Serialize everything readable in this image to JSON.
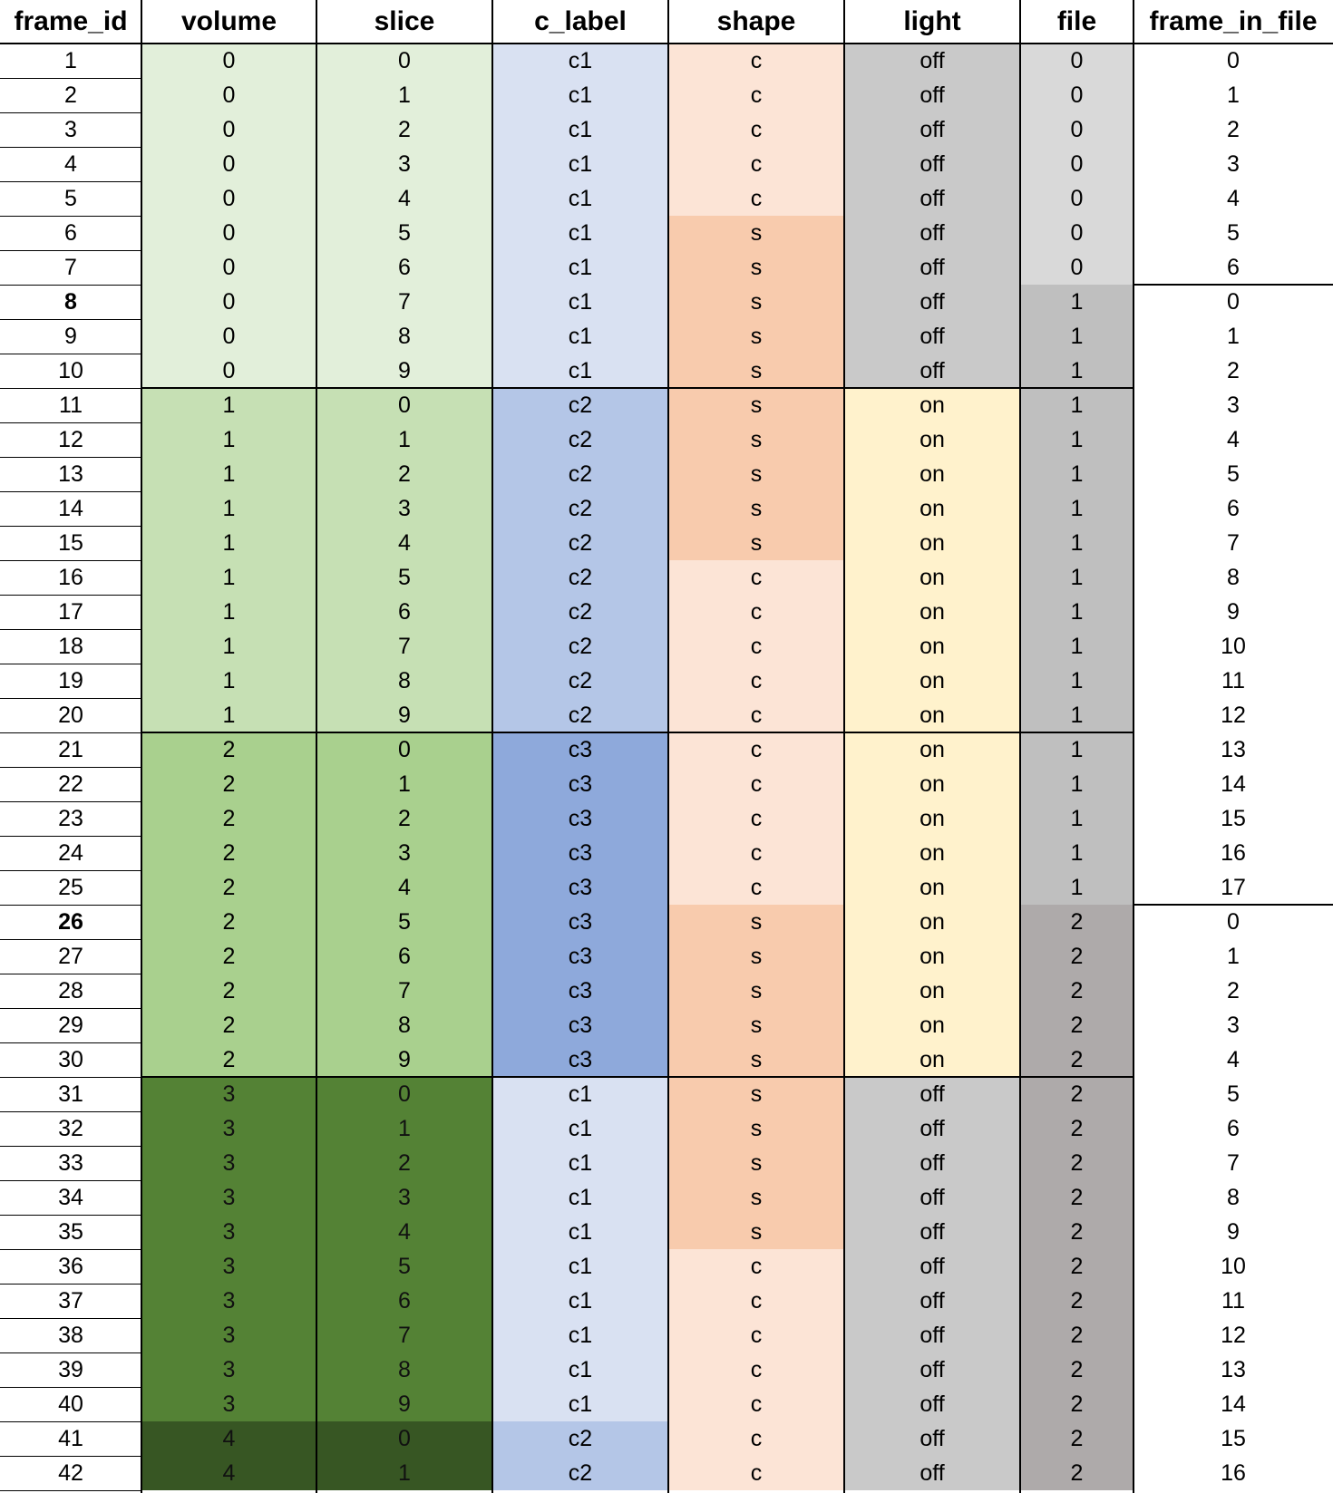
{
  "columns": [
    {
      "key": "frame_id",
      "label": "frame_id"
    },
    {
      "key": "volume",
      "label": "volume"
    },
    {
      "key": "slice",
      "label": "slice"
    },
    {
      "key": "c_label",
      "label": "c_label"
    },
    {
      "key": "shape",
      "label": "shape"
    },
    {
      "key": "light",
      "label": "light"
    },
    {
      "key": "file",
      "label": "file"
    },
    {
      "key": "frame_in_file",
      "label": "frame_in_file"
    }
  ],
  "bold_frame_ids": [
    8,
    26
  ],
  "colors": {
    "volume": [
      "#e2efda",
      "#c6e0b4",
      "#a9d08e",
      "#548235",
      "#375623"
    ],
    "c_label": {
      "c1": "#d9e1f2",
      "c2": "#b4c6e7",
      "c3": "#8ea9db"
    },
    "shape": {
      "c": "#fce4d6",
      "s": "#f8cbad"
    },
    "light": {
      "off": "#c9c9c9",
      "on": "#fff2cc"
    },
    "file": [
      "#d9d9d9",
      "#bfbfbf",
      "#aeaaaa"
    ]
  },
  "rows": [
    {
      "frame_id": "1",
      "volume": "0",
      "slice": "0",
      "c_label": "c1",
      "shape": "c",
      "light": "off",
      "file": "0",
      "frame_in_file": "0"
    },
    {
      "frame_id": "2",
      "volume": "0",
      "slice": "1",
      "c_label": "c1",
      "shape": "c",
      "light": "off",
      "file": "0",
      "frame_in_file": "1"
    },
    {
      "frame_id": "3",
      "volume": "0",
      "slice": "2",
      "c_label": "c1",
      "shape": "c",
      "light": "off",
      "file": "0",
      "frame_in_file": "2"
    },
    {
      "frame_id": "4",
      "volume": "0",
      "slice": "3",
      "c_label": "c1",
      "shape": "c",
      "light": "off",
      "file": "0",
      "frame_in_file": "3"
    },
    {
      "frame_id": "5",
      "volume": "0",
      "slice": "4",
      "c_label": "c1",
      "shape": "c",
      "light": "off",
      "file": "0",
      "frame_in_file": "4"
    },
    {
      "frame_id": "6",
      "volume": "0",
      "slice": "5",
      "c_label": "c1",
      "shape": "s",
      "light": "off",
      "file": "0",
      "frame_in_file": "5"
    },
    {
      "frame_id": "7",
      "volume": "0",
      "slice": "6",
      "c_label": "c1",
      "shape": "s",
      "light": "off",
      "file": "0",
      "frame_in_file": "6"
    },
    {
      "frame_id": "8",
      "volume": "0",
      "slice": "7",
      "c_label": "c1",
      "shape": "s",
      "light": "off",
      "file": "1",
      "frame_in_file": "0"
    },
    {
      "frame_id": "9",
      "volume": "0",
      "slice": "8",
      "c_label": "c1",
      "shape": "s",
      "light": "off",
      "file": "1",
      "frame_in_file": "1"
    },
    {
      "frame_id": "10",
      "volume": "0",
      "slice": "9",
      "c_label": "c1",
      "shape": "s",
      "light": "off",
      "file": "1",
      "frame_in_file": "2"
    },
    {
      "frame_id": "11",
      "volume": "1",
      "slice": "0",
      "c_label": "c2",
      "shape": "s",
      "light": "on",
      "file": "1",
      "frame_in_file": "3"
    },
    {
      "frame_id": "12",
      "volume": "1",
      "slice": "1",
      "c_label": "c2",
      "shape": "s",
      "light": "on",
      "file": "1",
      "frame_in_file": "4"
    },
    {
      "frame_id": "13",
      "volume": "1",
      "slice": "2",
      "c_label": "c2",
      "shape": "s",
      "light": "on",
      "file": "1",
      "frame_in_file": "5"
    },
    {
      "frame_id": "14",
      "volume": "1",
      "slice": "3",
      "c_label": "c2",
      "shape": "s",
      "light": "on",
      "file": "1",
      "frame_in_file": "6"
    },
    {
      "frame_id": "15",
      "volume": "1",
      "slice": "4",
      "c_label": "c2",
      "shape": "s",
      "light": "on",
      "file": "1",
      "frame_in_file": "7"
    },
    {
      "frame_id": "16",
      "volume": "1",
      "slice": "5",
      "c_label": "c2",
      "shape": "c",
      "light": "on",
      "file": "1",
      "frame_in_file": "8"
    },
    {
      "frame_id": "17",
      "volume": "1",
      "slice": "6",
      "c_label": "c2",
      "shape": "c",
      "light": "on",
      "file": "1",
      "frame_in_file": "9"
    },
    {
      "frame_id": "18",
      "volume": "1",
      "slice": "7",
      "c_label": "c2",
      "shape": "c",
      "light": "on",
      "file": "1",
      "frame_in_file": "10"
    },
    {
      "frame_id": "19",
      "volume": "1",
      "slice": "8",
      "c_label": "c2",
      "shape": "c",
      "light": "on",
      "file": "1",
      "frame_in_file": "11"
    },
    {
      "frame_id": "20",
      "volume": "1",
      "slice": "9",
      "c_label": "c2",
      "shape": "c",
      "light": "on",
      "file": "1",
      "frame_in_file": "12"
    },
    {
      "frame_id": "21",
      "volume": "2",
      "slice": "0",
      "c_label": "c3",
      "shape": "c",
      "light": "on",
      "file": "1",
      "frame_in_file": "13"
    },
    {
      "frame_id": "22",
      "volume": "2",
      "slice": "1",
      "c_label": "c3",
      "shape": "c",
      "light": "on",
      "file": "1",
      "frame_in_file": "14"
    },
    {
      "frame_id": "23",
      "volume": "2",
      "slice": "2",
      "c_label": "c3",
      "shape": "c",
      "light": "on",
      "file": "1",
      "frame_in_file": "15"
    },
    {
      "frame_id": "24",
      "volume": "2",
      "slice": "3",
      "c_label": "c3",
      "shape": "c",
      "light": "on",
      "file": "1",
      "frame_in_file": "16"
    },
    {
      "frame_id": "25",
      "volume": "2",
      "slice": "4",
      "c_label": "c3",
      "shape": "c",
      "light": "on",
      "file": "1",
      "frame_in_file": "17"
    },
    {
      "frame_id": "26",
      "volume": "2",
      "slice": "5",
      "c_label": "c3",
      "shape": "s",
      "light": "on",
      "file": "2",
      "frame_in_file": "0"
    },
    {
      "frame_id": "27",
      "volume": "2",
      "slice": "6",
      "c_label": "c3",
      "shape": "s",
      "light": "on",
      "file": "2",
      "frame_in_file": "1"
    },
    {
      "frame_id": "28",
      "volume": "2",
      "slice": "7",
      "c_label": "c3",
      "shape": "s",
      "light": "on",
      "file": "2",
      "frame_in_file": "2"
    },
    {
      "frame_id": "29",
      "volume": "2",
      "slice": "8",
      "c_label": "c3",
      "shape": "s",
      "light": "on",
      "file": "2",
      "frame_in_file": "3"
    },
    {
      "frame_id": "30",
      "volume": "2",
      "slice": "9",
      "c_label": "c3",
      "shape": "s",
      "light": "on",
      "file": "2",
      "frame_in_file": "4"
    },
    {
      "frame_id": "31",
      "volume": "3",
      "slice": "0",
      "c_label": "c1",
      "shape": "s",
      "light": "off",
      "file": "2",
      "frame_in_file": "5"
    },
    {
      "frame_id": "32",
      "volume": "3",
      "slice": "1",
      "c_label": "c1",
      "shape": "s",
      "light": "off",
      "file": "2",
      "frame_in_file": "6"
    },
    {
      "frame_id": "33",
      "volume": "3",
      "slice": "2",
      "c_label": "c1",
      "shape": "s",
      "light": "off",
      "file": "2",
      "frame_in_file": "7"
    },
    {
      "frame_id": "34",
      "volume": "3",
      "slice": "3",
      "c_label": "c1",
      "shape": "s",
      "light": "off",
      "file": "2",
      "frame_in_file": "8"
    },
    {
      "frame_id": "35",
      "volume": "3",
      "slice": "4",
      "c_label": "c1",
      "shape": "s",
      "light": "off",
      "file": "2",
      "frame_in_file": "9"
    },
    {
      "frame_id": "36",
      "volume": "3",
      "slice": "5",
      "c_label": "c1",
      "shape": "c",
      "light": "off",
      "file": "2",
      "frame_in_file": "10"
    },
    {
      "frame_id": "37",
      "volume": "3",
      "slice": "6",
      "c_label": "c1",
      "shape": "c",
      "light": "off",
      "file": "2",
      "frame_in_file": "11"
    },
    {
      "frame_id": "38",
      "volume": "3",
      "slice": "7",
      "c_label": "c1",
      "shape": "c",
      "light": "off",
      "file": "2",
      "frame_in_file": "12"
    },
    {
      "frame_id": "39",
      "volume": "3",
      "slice": "8",
      "c_label": "c1",
      "shape": "c",
      "light": "off",
      "file": "2",
      "frame_in_file": "13"
    },
    {
      "frame_id": "40",
      "volume": "3",
      "slice": "9",
      "c_label": "c1",
      "shape": "c",
      "light": "off",
      "file": "2",
      "frame_in_file": "14"
    },
    {
      "frame_id": "41",
      "volume": "4",
      "slice": "0",
      "c_label": "c2",
      "shape": "c",
      "light": "off",
      "file": "2",
      "frame_in_file": "15"
    },
    {
      "frame_id": "42",
      "volume": "4",
      "slice": "1",
      "c_label": "c2",
      "shape": "c",
      "light": "off",
      "file": "2",
      "frame_in_file": "16"
    }
  ]
}
